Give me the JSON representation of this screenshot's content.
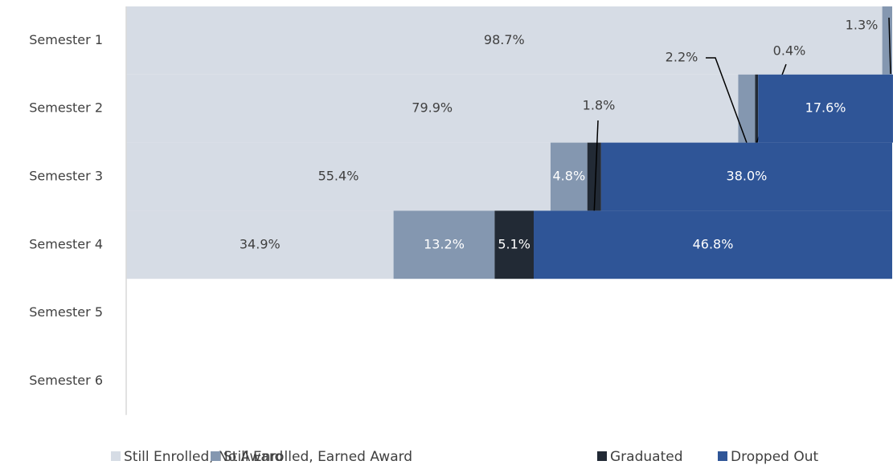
{
  "chart_data": {
    "type": "stacked-bar-horizontal",
    "categories": [
      "Semester 1",
      "Semester 2",
      "Semester 3",
      "Semester 4",
      "Semester 5",
      "Semester 6"
    ],
    "xlim": [
      0,
      100
    ],
    "legend": "bottom",
    "series": [
      {
        "name": "Still Enrolled, No Award",
        "color": "#d6dce5",
        "values": [
          98.7,
          79.9,
          55.4,
          34.9,
          null,
          null
        ],
        "value_labels": [
          "98.7%",
          "79.9%",
          "55.4%",
          "34.9%",
          null,
          null
        ]
      },
      {
        "name": "Still Enrolled, Earned Award",
        "color": "#8497b0",
        "values": [
          1.3,
          2.2,
          4.8,
          13.2,
          null,
          null
        ],
        "value_labels": [
          "1.3%",
          "2.2%",
          "4.8%",
          "13.2%",
          null,
          null
        ]
      },
      {
        "name": "Graduated",
        "color": "#222a35",
        "values": [
          null,
          0.4,
          1.8,
          5.1,
          null,
          null
        ],
        "value_labels": [
          null,
          "0.4%",
          "1.8%",
          "5.1%",
          null,
          null
        ]
      },
      {
        "name": "Dropped Out",
        "color": "#2f5597",
        "values": [
          null,
          17.6,
          38.0,
          46.8,
          null,
          null
        ],
        "value_labels": [
          null,
          "17.6%",
          "38.0%",
          "46.8%",
          null,
          null
        ]
      }
    ]
  }
}
